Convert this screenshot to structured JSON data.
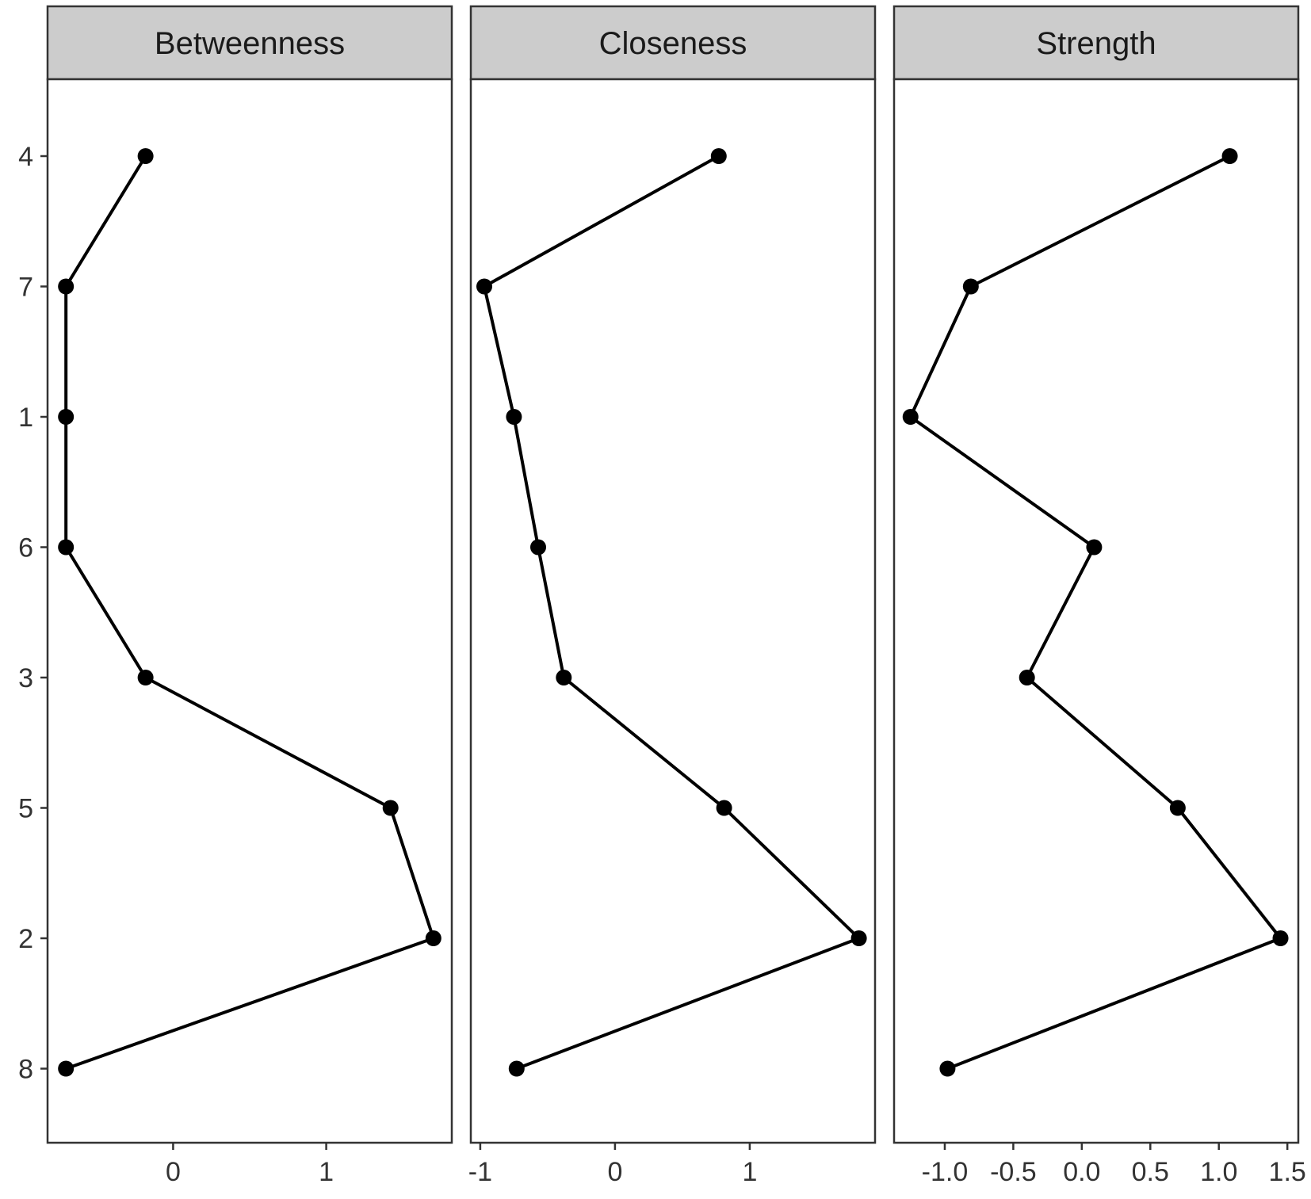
{
  "chart_data": {
    "type": "line",
    "facet_labels": [
      "Betweenness",
      "Closeness",
      "Strength"
    ],
    "y_categories": [
      "4",
      "7",
      "1",
      "6",
      "3",
      "5",
      "2",
      "8"
    ],
    "grid": true,
    "panels": [
      {
        "title": "Betweenness",
        "xlim": [
          -0.82,
          1.82
        ],
        "x_ticks": [
          0,
          1
        ],
        "x_tick_labels": [
          "0",
          "1"
        ],
        "values": [
          -0.18,
          -0.7,
          -0.7,
          -0.7,
          -0.18,
          1.42,
          1.7,
          -0.7
        ]
      },
      {
        "title": "Closeness",
        "xlim": [
          -1.07,
          1.93
        ],
        "x_ticks": [
          -1,
          0,
          1
        ],
        "x_tick_labels": [
          "-1",
          "0",
          "1"
        ],
        "values": [
          0.77,
          -0.97,
          -0.75,
          -0.57,
          -0.38,
          0.81,
          1.81,
          -0.73
        ]
      },
      {
        "title": "Strength",
        "xlim": [
          -1.37,
          1.58
        ],
        "x_ticks": [
          -1.0,
          -0.5,
          0.0,
          0.5,
          1.0,
          1.5
        ],
        "x_tick_labels": [
          "-1.0",
          "-0.5",
          "0.0",
          "0.5",
          "1.0",
          "1.5"
        ],
        "values": [
          1.08,
          -0.81,
          -1.25,
          0.09,
          -0.4,
          0.7,
          1.45,
          -0.98
        ]
      }
    ]
  }
}
